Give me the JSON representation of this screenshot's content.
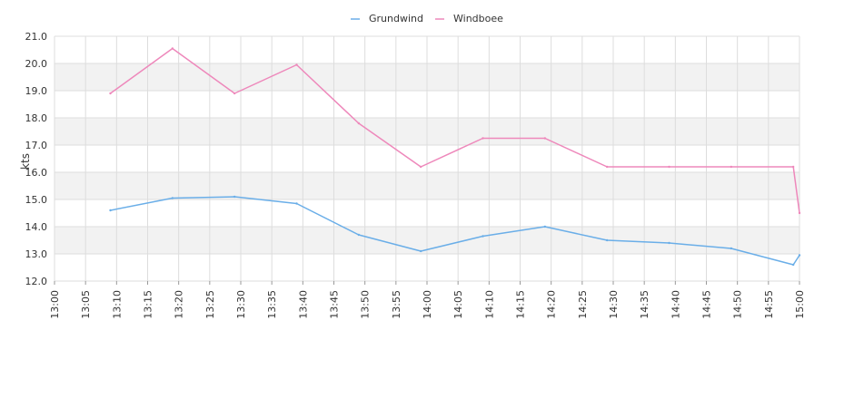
{
  "chart_data": {
    "type": "line",
    "title": "",
    "xlabel": "",
    "ylabel": "kts",
    "ylim": [
      12.0,
      21.0
    ],
    "xlim": [
      "13:00",
      "15:00"
    ],
    "grid": true,
    "legend_position": "top-center",
    "x_ticks": [
      "13:00",
      "13:05",
      "13:10",
      "13:15",
      "13:20",
      "13:25",
      "13:30",
      "13:35",
      "13:40",
      "13:45",
      "13:50",
      "13:55",
      "14:00",
      "14:05",
      "14:10",
      "14:15",
      "14:20",
      "14:25",
      "14:30",
      "14:35",
      "14:40",
      "14:45",
      "14:50",
      "14:55",
      "15:00"
    ],
    "y_ticks": [
      "12.0",
      "13.0",
      "14.0",
      "15.0",
      "16.0",
      "17.0",
      "18.0",
      "19.0",
      "20.0",
      "21.0"
    ],
    "series": [
      {
        "name": "Grundwind",
        "color": "#6aaee8",
        "x": [
          "13:09",
          "13:19",
          "13:29",
          "13:39",
          "13:49",
          "13:59",
          "14:09",
          "14:19",
          "14:29",
          "14:39",
          "14:49",
          "14:59",
          "15:00"
        ],
        "values": [
          14.6,
          15.05,
          15.1,
          14.85,
          13.7,
          13.1,
          13.65,
          14.0,
          13.5,
          13.4,
          13.2,
          12.6,
          12.95
        ]
      },
      {
        "name": "Windboee",
        "color": "#ee88bb",
        "x": [
          "13:09",
          "13:19",
          "13:29",
          "13:39",
          "13:49",
          "13:59",
          "14:09",
          "14:19",
          "14:29",
          "14:39",
          "14:49",
          "14:59",
          "15:00"
        ],
        "values": [
          18.9,
          20.55,
          18.9,
          19.95,
          17.8,
          16.2,
          17.25,
          17.25,
          16.2,
          16.2,
          16.2,
          16.2,
          14.5
        ]
      }
    ]
  }
}
